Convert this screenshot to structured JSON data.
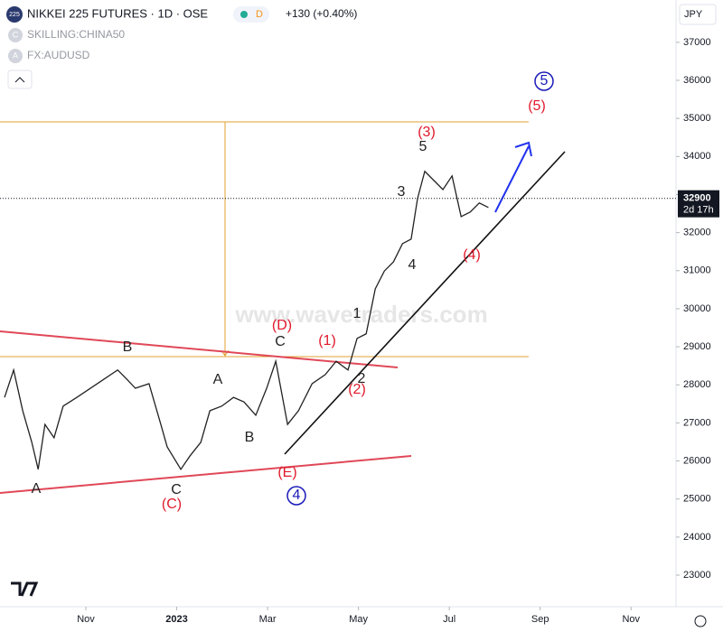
{
  "header": {
    "logo": "225",
    "title": "NIKKEI 225 FUTURES · 1D · OSE",
    "badge": "D",
    "change": "+130 (+0.40%)",
    "currency": "JPY",
    "compare": [
      {
        "icon": "C",
        "label": "SKILLING:CHINA50"
      },
      {
        "icon": "A",
        "label": "FX:AUDUSD"
      }
    ]
  },
  "watermark": "www.wavetraders.com",
  "chart_data": {
    "type": "line",
    "color": "#222222",
    "x": [
      -1.79,
      -1.59,
      -1.39,
      -1.19,
      -1.05,
      -0.9,
      -0.7,
      -0.5,
      -0.2,
      0.1,
      0.4,
      0.7,
      0.9,
      1.09,
      1.39,
      1.65,
      1.79,
      2.09,
      2.29,
      2.53,
      2.73,
      2.99,
      3.25,
      3.48,
      3.74,
      3.98,
      4.18,
      4.44,
      4.68,
      4.98,
      5.27,
      5.51,
      5.77,
      5.97,
      6.17,
      6.37,
      6.57,
      6.77,
      6.97,
      7.16,
      7.3,
      7.46,
      7.66,
      7.86,
      8.06,
      8.26,
      8.46,
      8.66,
      8.86
    ],
    "values": [
      27670,
      28390,
      27320,
      26490,
      25780,
      26960,
      26610,
      27440,
      27670,
      27910,
      28150,
      28390,
      28150,
      27910,
      28030,
      26960,
      26370,
      25780,
      26130,
      26490,
      27320,
      27440,
      27670,
      27550,
      27200,
      27910,
      28620,
      26960,
      27320,
      28030,
      28270,
      28620,
      28390,
      29220,
      29340,
      30520,
      30990,
      31230,
      31710,
      31830,
      32890,
      33610,
      33370,
      33130,
      33490,
      32420,
      32540,
      32780,
      32660
    ],
    "xlim": [
      -1.89,
      12.99
    ],
    "xticks": [
      {
        "value": 0,
        "label": "Nov"
      },
      {
        "value": 2,
        "label": "2023"
      },
      {
        "value": 4,
        "label": "Mar"
      },
      {
        "value": 6,
        "label": "May"
      },
      {
        "value": 8,
        "label": "Jul"
      },
      {
        "value": 10,
        "label": "Sep"
      },
      {
        "value": 12,
        "label": "Nov"
      }
    ],
    "ylim": [
      22170,
      37400
    ],
    "yticks": [
      23000,
      24000,
      25000,
      26000,
      27000,
      28000,
      29000,
      30000,
      31000,
      32000,
      33000,
      34000,
      35000,
      36000,
      37000
    ],
    "last_price": 32900,
    "countdown": "2d 17h",
    "annotations": [
      {
        "text": "5",
        "color": "#1a1ab8",
        "circled": true
      },
      {
        "text": "(5)",
        "color": "#e0192b"
      },
      {
        "text": "(3)",
        "color": "#e0192b"
      },
      {
        "text": "5",
        "color": "#222222"
      },
      {
        "text": "3",
        "color": "#222222"
      },
      {
        "text": "4",
        "color": "#222222"
      },
      {
        "text": "(4)",
        "color": "#e0192b"
      },
      {
        "text": "1",
        "color": "#222222"
      },
      {
        "text": "(1)",
        "color": "#e0192b"
      },
      {
        "text": "2",
        "color": "#222222"
      },
      {
        "text": "(2)",
        "color": "#e0192b"
      },
      {
        "text": "(D)",
        "color": "#e0192b"
      },
      {
        "text": "C",
        "color": "#222222"
      },
      {
        "text": "B",
        "color": "#222222"
      },
      {
        "text": "A",
        "color": "#222222"
      },
      {
        "text": "B",
        "color": "#222222"
      },
      {
        "text": "(E)",
        "color": "#e0192b"
      },
      {
        "text": "4",
        "color": "#1a1ab8",
        "circled": true
      },
      {
        "text": "A",
        "color": "#222222"
      },
      {
        "text": "C",
        "color": "#222222"
      },
      {
        "text": "(C)",
        "color": "#e0192b"
      }
    ]
  }
}
